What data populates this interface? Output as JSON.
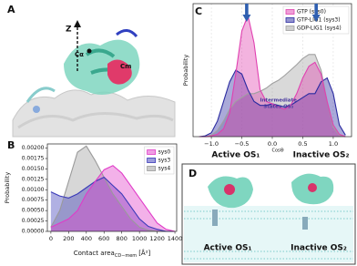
{
  "panel_labels": [
    "A",
    "B",
    "C",
    "D"
  ],
  "panel_a": {
    "axis_label": "Z",
    "labels": [
      "Cα",
      "Cm"
    ]
  },
  "panel_d": {
    "labels": [
      "Active OS₁",
      "Inactive OS₂"
    ]
  },
  "chart_data": [
    {
      "type": "area",
      "ylabel": "Probability",
      "xlabel": "Contact area",
      "xlabel_sub": "CD−mem",
      "xlabel_unit": "[Å²]",
      "legend": "upper right",
      "x": [
        0,
        100,
        200,
        300,
        400,
        500,
        600,
        700,
        800,
        900,
        1000,
        1100,
        1200,
        1300,
        1400
      ],
      "series": [
        {
          "name": "sys0",
          "color": "#e03cc8",
          "values": [
            0.0001,
            0.0002,
            0.0003,
            0.0005,
            0.0009,
            0.0012,
            0.00148,
            0.00158,
            0.0014,
            0.0011,
            0.0008,
            0.0005,
            0.0002,
            5e-05,
            0
          ]
        },
        {
          "name": "sys3",
          "color": "#3a3ab8",
          "values": [
            0.00095,
            0.00085,
            0.0008,
            0.0009,
            0.00105,
            0.0012,
            0.0013,
            0.0011,
            0.0009,
            0.0006,
            0.0003,
            0.00012,
            5e-05,
            0,
            0
          ]
        },
        {
          "name": "sys4",
          "color": "#9a9a9a",
          "values": [
            0.0001,
            0.0005,
            0.0012,
            0.0019,
            0.00205,
            0.0017,
            0.0013,
            0.0009,
            0.0006,
            0.0003,
            0.0001,
            3e-05,
            0,
            0,
            0
          ]
        }
      ],
      "xlim": [
        -40,
        1420
      ],
      "ylim": [
        0,
        0.0021
      ],
      "xticks": [
        0,
        200,
        400,
        600,
        800,
        1000,
        1200,
        1400
      ],
      "yticks": [
        {
          "value": 0,
          "label": "0.00000"
        },
        {
          "value": 0.00025,
          "label": "0.00025"
        },
        {
          "value": 0.0005,
          "label": "0.00050"
        },
        {
          "value": 0.00075,
          "label": "0.00075"
        },
        {
          "value": 0.001,
          "label": "0.00100"
        },
        {
          "value": 0.00125,
          "label": "0.00125"
        },
        {
          "value": 0.0015,
          "label": "0.00150"
        },
        {
          "value": 0.00175,
          "label": "0.00175"
        },
        {
          "value": 0.002,
          "label": "0.00200"
        }
      ],
      "grid": false
    },
    {
      "type": "area",
      "ylabel": "Probability",
      "xlabel": "CosΘ",
      "xlabel_left": "Active OS₁",
      "xlabel_right": "Inactive OS₂",
      "annotation": [
        "Intermediate",
        "States OS₃"
      ],
      "arrows_x": [
        -0.42,
        0.72
      ],
      "legend": "upper right",
      "x": [
        -1.2,
        -1.1,
        -1.0,
        -0.9,
        -0.8,
        -0.7,
        -0.6,
        -0.5,
        -0.4,
        -0.3,
        -0.2,
        -0.1,
        0,
        0.1,
        0.2,
        0.3,
        0.4,
        0.5,
        0.6,
        0.7,
        0.8,
        0.9,
        1.0,
        1.1,
        1.2
      ],
      "series": [
        {
          "name": "GTP (sys0)",
          "color": "#e040b0",
          "values": [
            0,
            0,
            0.01,
            0.03,
            0.1,
            0.3,
            0.8,
            1.35,
            1.55,
            1.2,
            0.6,
            0.45,
            0.42,
            0.38,
            0.35,
            0.4,
            0.55,
            0.75,
            0.9,
            0.95,
            0.8,
            0.45,
            0.15,
            0.03,
            0
          ]
        },
        {
          "name": "GTP-LIG1 (sys3)",
          "color": "#2a2aa0",
          "values": [
            0,
            0.01,
            0.05,
            0.2,
            0.45,
            0.7,
            0.85,
            0.8,
            0.6,
            0.45,
            0.4,
            0.4,
            0.42,
            0.4,
            0.38,
            0.4,
            0.45,
            0.5,
            0.55,
            0.55,
            0.7,
            0.75,
            0.55,
            0.15,
            0.02
          ]
        },
        {
          "name": "GDP-LIG1 (sys4)",
          "color": "#a0a0a0",
          "values": [
            0,
            0,
            0.02,
            0.08,
            0.2,
            0.35,
            0.45,
            0.5,
            0.55,
            0.55,
            0.58,
            0.62,
            0.68,
            0.72,
            0.78,
            0.85,
            0.92,
            1.0,
            1.05,
            1.05,
            0.85,
            0.45,
            0.12,
            0.02,
            0
          ]
        }
      ],
      "xlim": [
        -1.3,
        1.3
      ],
      "ylim": [
        0,
        1.7
      ],
      "xticks": [
        {
          "value": -1,
          "label": "−1.0"
        },
        {
          "value": -0.5,
          "label": "−0.5"
        },
        {
          "value": 0,
          "label": "0.0"
        },
        {
          "value": 0.5,
          "label": "0.5"
        },
        {
          "value": 1,
          "label": "1.0"
        }
      ],
      "grid": true
    }
  ]
}
